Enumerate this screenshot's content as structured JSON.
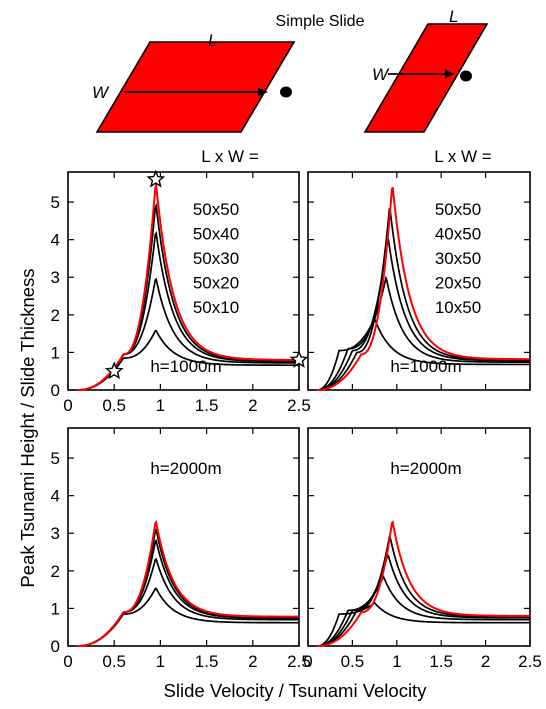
{
  "figure": {
    "header_title": "Simple Slide",
    "left_diagram": {
      "length_label": "L",
      "width_label": "W",
      "slide_color": "#ff0000"
    },
    "right_diagram": {
      "length_label": "L",
      "width_label": "W",
      "slide_color": "#ff0000"
    },
    "left_column_header": "L x W =",
    "right_column_header": "L x W =",
    "ylabel": "Peak Tsunami Height / Slide Thickness",
    "xlabel": "Slide Velocity / Tsunami Velocity"
  },
  "colors": {
    "highlight_series": "#ff0000",
    "other_series": "#000000",
    "slide": "#ff0000"
  },
  "chart_data": [
    {
      "type": "line",
      "panel": "top-left",
      "annotation": "h=1000m",
      "legend_labels": [
        "50x50",
        "50x40",
        "50x30",
        "50x20",
        "50x10"
      ],
      "xlim": [
        0,
        2.5
      ],
      "ylim": [
        0,
        5.8
      ],
      "xticks": [
        0,
        0.5,
        1,
        1.5,
        2,
        2.5
      ],
      "xtick_labels": [
        "0",
        "0.5",
        "1",
        "1.5",
        "2",
        "2.5"
      ],
      "yticks": [
        0,
        1,
        2,
        3,
        4,
        5
      ],
      "ytick_labels": [
        "0",
        "1",
        "2",
        "3",
        "4",
        "5"
      ],
      "markers": [
        {
          "shape": "star",
          "x": 0.5,
          "y": 0.5
        },
        {
          "shape": "star",
          "x": 0.95,
          "y": 5.6
        },
        {
          "shape": "star",
          "x": 2.5,
          "y": 0.8
        }
      ],
      "series": [
        {
          "highlight": true,
          "peak_x": 0.95,
          "peak": 5.55,
          "rise_start": 0.6,
          "rise_value": 0.95,
          "tail": 0.8
        },
        {
          "peak_x": 0.95,
          "peak": 5.0,
          "rise_start": 0.6,
          "rise_value": 0.95,
          "tail": 0.78
        },
        {
          "peak_x": 0.95,
          "peak": 4.25,
          "rise_start": 0.6,
          "rise_value": 0.95,
          "tail": 0.76
        },
        {
          "peak_x": 0.95,
          "peak": 3.0,
          "rise_start": 0.6,
          "rise_value": 0.95,
          "tail": 0.72
        },
        {
          "peak_x": 0.95,
          "peak": 1.6,
          "rise_start": 0.6,
          "rise_value": 0.85,
          "tail": 0.66
        }
      ]
    },
    {
      "type": "line",
      "panel": "top-right",
      "annotation": "h=1000m",
      "legend_labels": [
        "50x50",
        "40x50",
        "30x50",
        "20x50",
        "10x50"
      ],
      "xlim": [
        0,
        2.5
      ],
      "ylim": [
        0,
        5.8
      ],
      "xticks": [
        0,
        0.5,
        1,
        1.5,
        2,
        2.5
      ],
      "yticks": [
        0,
        1,
        2,
        3,
        4,
        5
      ],
      "series": [
        {
          "highlight": true,
          "peak_x": 0.95,
          "peak": 5.5,
          "rise_start": 0.6,
          "rise_value": 0.95,
          "tail": 0.82
        },
        {
          "peak_x": 0.92,
          "peak": 4.9,
          "rise_start": 0.55,
          "rise_value": 1.0,
          "tail": 0.8
        },
        {
          "peak_x": 0.9,
          "peak": 4.1,
          "rise_start": 0.5,
          "rise_value": 1.05,
          "tail": 0.78
        },
        {
          "peak_x": 0.88,
          "peak": 3.0,
          "rise_start": 0.45,
          "rise_value": 1.1,
          "tail": 0.74
        },
        {
          "peak_x": 0.75,
          "peak": 1.9,
          "rise_start": 0.35,
          "rise_value": 1.05,
          "tail": 0.68
        }
      ]
    },
    {
      "type": "line",
      "panel": "bottom-left",
      "annotation": "h=2000m",
      "xlim": [
        0,
        2.5
      ],
      "ylim": [
        0,
        5.8
      ],
      "xticks": [
        0,
        0.5,
        1,
        1.5,
        2,
        2.5
      ],
      "xtick_labels": [
        "0",
        "0.5",
        "1",
        "1.5",
        "2",
        "2.5"
      ],
      "yticks": [
        0,
        1,
        2,
        3,
        4,
        5
      ],
      "ytick_labels": [
        "0",
        "1",
        "2",
        "3",
        "4",
        "5"
      ],
      "series": [
        {
          "highlight": true,
          "peak_x": 0.95,
          "peak": 3.35,
          "rise_start": 0.6,
          "rise_value": 0.9,
          "tail": 0.78
        },
        {
          "peak_x": 0.95,
          "peak": 3.15,
          "rise_start": 0.6,
          "rise_value": 0.9,
          "tail": 0.76
        },
        {
          "peak_x": 0.95,
          "peak": 2.85,
          "rise_start": 0.6,
          "rise_value": 0.9,
          "tail": 0.74
        },
        {
          "peak_x": 0.95,
          "peak": 2.35,
          "rise_start": 0.6,
          "rise_value": 0.9,
          "tail": 0.7
        },
        {
          "peak_x": 0.95,
          "peak": 1.55,
          "rise_start": 0.6,
          "rise_value": 0.85,
          "tail": 0.62
        }
      ]
    },
    {
      "type": "line",
      "panel": "bottom-right",
      "annotation": "h=2000m",
      "xlim": [
        0,
        2.5
      ],
      "ylim": [
        0,
        5.8
      ],
      "xticks": [
        0,
        0.5,
        1,
        1.5,
        2,
        2.5
      ],
      "xtick_labels": [
        "0",
        "0.5",
        "1",
        "1.5",
        "2",
        "2.5"
      ],
      "yticks": [
        0,
        1,
        2,
        3,
        4,
        5
      ],
      "series": [
        {
          "highlight": true,
          "peak_x": 0.95,
          "peak": 3.35,
          "rise_start": 0.6,
          "rise_value": 0.9,
          "tail": 0.8
        },
        {
          "peak_x": 0.92,
          "peak": 2.95,
          "rise_start": 0.55,
          "rise_value": 0.95,
          "tail": 0.78
        },
        {
          "peak_x": 0.9,
          "peak": 2.45,
          "rise_start": 0.5,
          "rise_value": 0.95,
          "tail": 0.75
        },
        {
          "peak_x": 0.85,
          "peak": 1.85,
          "rise_start": 0.45,
          "rise_value": 0.95,
          "tail": 0.7
        },
        {
          "peak_x": 0.75,
          "peak": 1.15,
          "rise_start": 0.35,
          "rise_value": 0.85,
          "tail": 0.62
        }
      ]
    }
  ]
}
